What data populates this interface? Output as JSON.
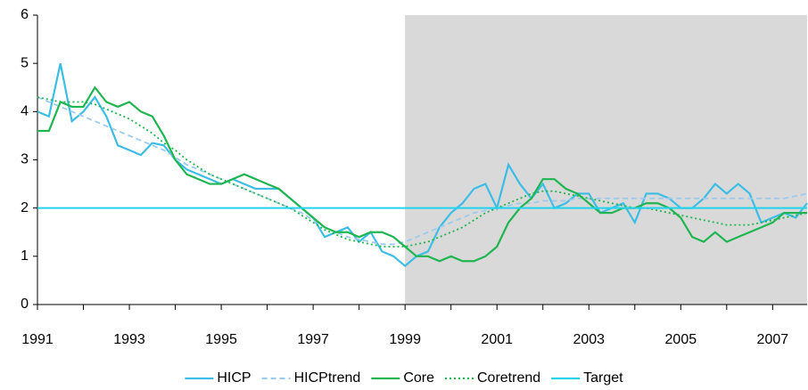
{
  "chart_data": {
    "type": "line",
    "x": [
      1991,
      1991.25,
      1991.5,
      1991.75,
      1992,
      1992.25,
      1992.5,
      1992.75,
      1993,
      1993.25,
      1993.5,
      1993.75,
      1994,
      1994.25,
      1994.5,
      1994.75,
      1995,
      1995.25,
      1995.5,
      1995.75,
      1996,
      1996.25,
      1996.5,
      1996.75,
      1997,
      1997.25,
      1997.5,
      1997.75,
      1998,
      1998.25,
      1998.5,
      1998.75,
      1999,
      1999.25,
      1999.5,
      1999.75,
      2000,
      2000.25,
      2000.5,
      2000.75,
      2001,
      2001.25,
      2001.5,
      2001.75,
      2002,
      2002.25,
      2002.5,
      2002.75,
      2003,
      2003.25,
      2003.5,
      2003.75,
      2004,
      2004.25,
      2004.5,
      2004.75,
      2005,
      2005.25,
      2005.5,
      2005.75,
      2006,
      2006.25,
      2006.5,
      2006.75,
      2007,
      2007.25,
      2007.5,
      2007.75
    ],
    "series": [
      {
        "name": "HICP",
        "color": "#3cbde6",
        "dash": "solid",
        "values": [
          4.0,
          3.9,
          5.0,
          3.8,
          4.0,
          4.3,
          3.9,
          3.3,
          3.2,
          3.1,
          3.35,
          3.3,
          3.0,
          2.8,
          2.7,
          2.6,
          2.5,
          2.6,
          2.5,
          2.4,
          2.4,
          2.4,
          2.2,
          2.0,
          1.8,
          1.4,
          1.5,
          1.6,
          1.3,
          1.5,
          1.1,
          1.0,
          0.8,
          1.0,
          1.1,
          1.6,
          1.9,
          2.1,
          2.4,
          2.5,
          2.0,
          2.9,
          2.5,
          2.2,
          2.5,
          2.0,
          2.1,
          2.3,
          2.3,
          1.9,
          2.0,
          2.1,
          1.7,
          2.3,
          2.3,
          2.2,
          2.0,
          2.0,
          2.2,
          2.5,
          2.3,
          2.5,
          2.3,
          1.7,
          1.8,
          1.9,
          1.8,
          2.1
        ]
      },
      {
        "name": "HICPtrend",
        "color": "#9ccbee",
        "dash": "dashed",
        "values": [
          4.3,
          4.2,
          4.1,
          4.0,
          3.9,
          3.8,
          3.7,
          3.6,
          3.5,
          3.4,
          3.3,
          3.2,
          3.05,
          2.9,
          2.8,
          2.7,
          2.6,
          2.5,
          2.4,
          2.3,
          2.2,
          2.1,
          2.0,
          1.9,
          1.75,
          1.6,
          1.5,
          1.4,
          1.35,
          1.3,
          1.25,
          1.25,
          1.3,
          1.4,
          1.5,
          1.6,
          1.7,
          1.8,
          1.9,
          1.95,
          2.0,
          2.05,
          2.1,
          2.1,
          2.15,
          2.15,
          2.15,
          2.2,
          2.2,
          2.2,
          2.2,
          2.2,
          2.2,
          2.2,
          2.2,
          2.2,
          2.2,
          2.2,
          2.2,
          2.2,
          2.2,
          2.2,
          2.2,
          2.2,
          2.2,
          2.2,
          2.25,
          2.3
        ]
      },
      {
        "name": "Core",
        "color": "#1fb550",
        "dash": "solid",
        "values": [
          3.6,
          3.6,
          4.2,
          4.1,
          4.1,
          4.5,
          4.2,
          4.1,
          4.2,
          4.0,
          3.9,
          3.5,
          3.0,
          2.7,
          2.6,
          2.5,
          2.5,
          2.6,
          2.7,
          2.6,
          2.5,
          2.4,
          2.2,
          2.0,
          1.8,
          1.6,
          1.5,
          1.5,
          1.4,
          1.5,
          1.5,
          1.4,
          1.2,
          1.0,
          1.0,
          0.9,
          1.0,
          0.9,
          0.9,
          1.0,
          1.2,
          1.7,
          2.0,
          2.2,
          2.6,
          2.6,
          2.4,
          2.3,
          2.1,
          1.9,
          1.9,
          2.0,
          2.0,
          2.1,
          2.1,
          2.0,
          1.8,
          1.4,
          1.3,
          1.5,
          1.3,
          1.4,
          1.5,
          1.6,
          1.7,
          1.9,
          1.9,
          1.9
        ]
      },
      {
        "name": "Coretrend",
        "color": "#1fb550",
        "dash": "dotted",
        "values": [
          4.3,
          4.25,
          4.2,
          4.2,
          4.2,
          4.15,
          4.05,
          3.95,
          3.85,
          3.7,
          3.55,
          3.35,
          3.2,
          3.0,
          2.85,
          2.7,
          2.6,
          2.5,
          2.4,
          2.3,
          2.2,
          2.1,
          2.0,
          1.85,
          1.7,
          1.55,
          1.45,
          1.35,
          1.3,
          1.25,
          1.2,
          1.2,
          1.2,
          1.25,
          1.3,
          1.4,
          1.5,
          1.6,
          1.75,
          1.9,
          2.0,
          2.1,
          2.2,
          2.3,
          2.35,
          2.35,
          2.3,
          2.25,
          2.2,
          2.15,
          2.1,
          2.05,
          2.0,
          2.0,
          1.95,
          1.9,
          1.85,
          1.8,
          1.75,
          1.7,
          1.65,
          1.65,
          1.65,
          1.7,
          1.75,
          1.8,
          1.85,
          1.9
        ]
      }
    ],
    "target": {
      "name": "Target",
      "value": 2,
      "color": "#22d3ee"
    },
    "shaded_from": 1999,
    "shade_color": "#d9d9d9",
    "xlim": [
      1991,
      2007.75
    ],
    "xticks": [
      1991,
      1993,
      1995,
      1997,
      1999,
      2001,
      2003,
      2005,
      2007
    ],
    "xminor_ticks": [
      1992,
      1994,
      1996,
      1998,
      2000,
      2002,
      2004,
      2006
    ],
    "ylim": [
      0,
      6
    ],
    "yticks": [
      0,
      1,
      2,
      3,
      4,
      5,
      6
    ]
  }
}
